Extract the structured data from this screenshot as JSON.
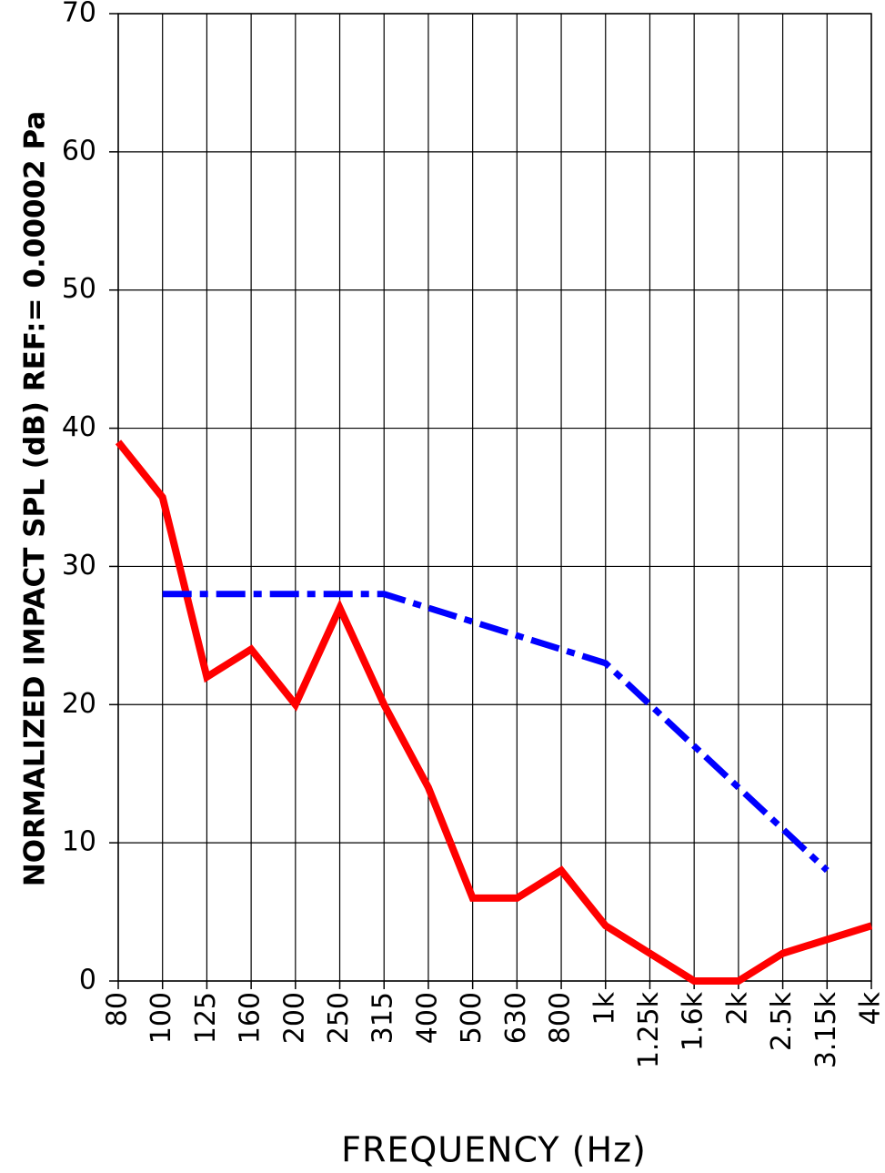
{
  "chart_data": {
    "type": "line",
    "x_label": "FREQUENCY (Hz)",
    "y_label": "NORMALIZED IMPACT SPL (dB) REF:= 0.00002 Pa",
    "categories": [
      "80",
      "100",
      "125",
      "160",
      "200",
      "250",
      "315",
      "400",
      "500",
      "630",
      "800",
      "1k",
      "1.25k",
      "1.6k",
      "2k",
      "2.5k",
      "3.15k",
      "4k"
    ],
    "series": [
      {
        "color": "#ff0000",
        "style": "solid",
        "values": [
          39,
          35,
          22,
          24,
          20,
          27,
          20,
          14,
          6,
          6,
          8,
          4,
          2,
          0,
          0,
          2,
          3,
          4
        ]
      },
      {
        "color": "#0000ff",
        "style": "dashdot",
        "values": [
          null,
          28,
          28,
          28,
          28,
          28,
          28,
          27,
          26,
          25,
          24,
          23,
          20,
          17,
          14,
          11,
          8,
          null
        ]
      }
    ],
    "ylim": [
      0,
      70
    ],
    "yticks": [
      0,
      10,
      20,
      30,
      40,
      50,
      60,
      70
    ],
    "grid": true
  }
}
